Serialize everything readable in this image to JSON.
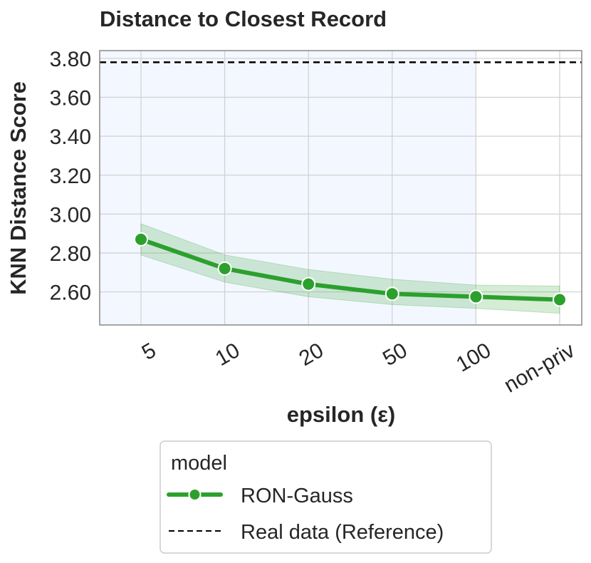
{
  "chart_data": {
    "type": "line",
    "title": "Distance to Closest Record",
    "xlabel": "epsilon (ε)",
    "ylabel": "KNN Distance Score",
    "categories": [
      "5",
      "10",
      "20",
      "50",
      "100",
      "non-priv"
    ],
    "y_ticks": [
      "2.60",
      "2.80",
      "3.00",
      "3.20",
      "3.40",
      "3.60",
      "3.80"
    ],
    "ylim": [
      2.43,
      3.84
    ],
    "grid": true,
    "shaded_region": {
      "from_category": "5",
      "to_category": "100",
      "color": "#f3f7ff"
    },
    "series": [
      {
        "name": "RON-Gauss",
        "values": [
          2.87,
          2.72,
          2.64,
          2.59,
          2.575,
          2.56
        ],
        "ci_lower": [
          2.79,
          2.65,
          2.575,
          2.535,
          2.515,
          2.49
        ],
        "ci_upper": [
          2.95,
          2.79,
          2.715,
          2.665,
          2.635,
          2.63
        ],
        "color": "#2ca02c",
        "marker": "circle"
      }
    ],
    "reference_lines": [
      {
        "name": "Real data (Reference)",
        "value": 3.78,
        "style": "dashed",
        "color": "#000000"
      }
    ],
    "legend": {
      "title": "model",
      "placement": "bottom-center-outside",
      "entries": [
        "RON-Gauss",
        "Real data (Reference)"
      ]
    }
  }
}
